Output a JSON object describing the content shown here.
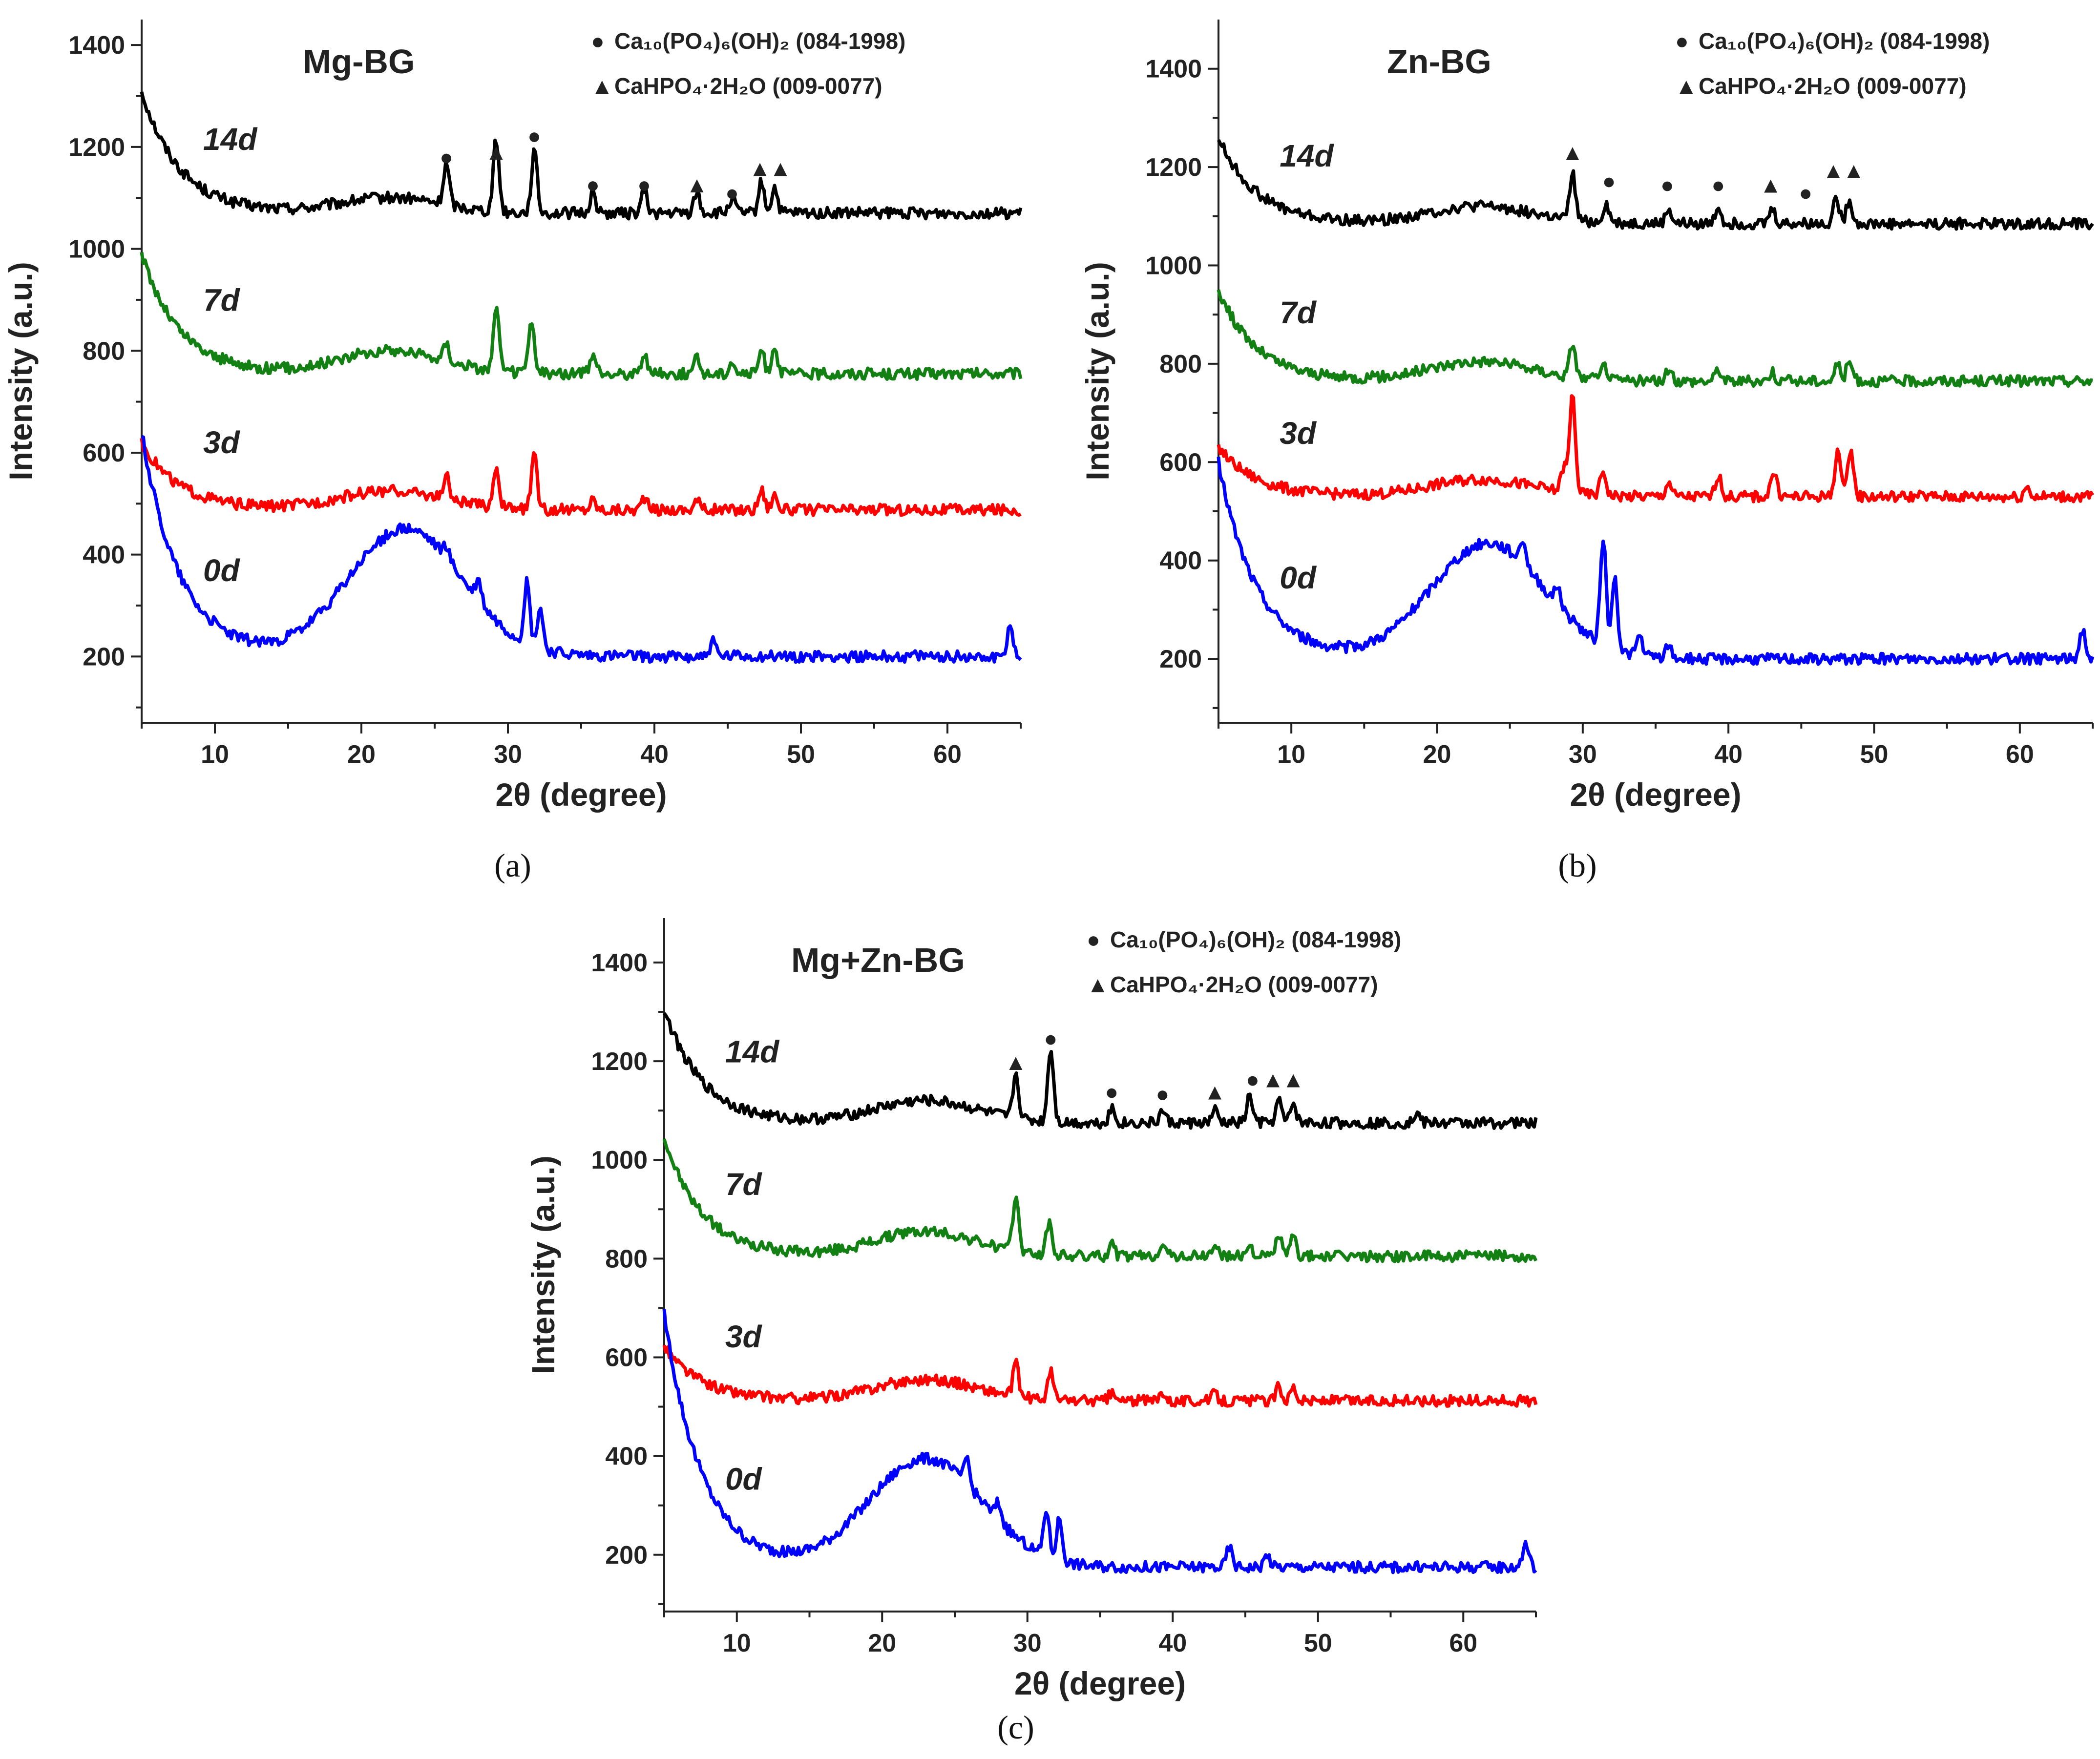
{
  "chart_data": [
    {
      "type": "line",
      "panel": "(a)",
      "title": "Mg-BG",
      "xlabel": "2θ (degree)",
      "ylabel": "Intensity (a.u.)",
      "xlim": [
        5,
        65
      ],
      "ylim": [
        70,
        1450
      ],
      "xticks": [
        10,
        20,
        30,
        40,
        50,
        60
      ],
      "yticks": [
        200,
        400,
        600,
        800,
        1000,
        1200,
        1400
      ],
      "grid": false,
      "legend": {
        "placement": "top-right",
        "entries": [
          {
            "marker": "●",
            "label": "Ca₁₀(PO₄)₆(OH)₂ (084-1998)"
          },
          {
            "marker": "▲",
            "label": "CaHPO₄·2H₂O (009-0077)"
          }
        ]
      },
      "series": [
        {
          "name": "14d",
          "color": "#000000",
          "base": 1070,
          "start": 1310,
          "halo": [
            1100,
            22,
            5
          ],
          "sharp": [
            [
              25.8,
              80
            ],
            [
              29.2,
              140
            ],
            [
              31.8,
              120
            ],
            [
              35.8,
              40
            ],
            [
              39.3,
              45
            ],
            [
              42.9,
              40
            ],
            [
              45.3,
              30
            ],
            [
              47.3,
              60
            ],
            [
              48.2,
              50
            ]
          ]
        },
        {
          "name": "7d",
          "color": "#138013",
          "base": 755,
          "start": 990,
          "halo": [
            800,
            22,
            5
          ],
          "sharp": [
            [
              25.8,
              35
            ],
            [
              29.2,
              120
            ],
            [
              31.6,
              100
            ],
            [
              35.8,
              35
            ],
            [
              39.3,
              40
            ],
            [
              42.9,
              30
            ],
            [
              45.3,
              25
            ],
            [
              47.3,
              45
            ],
            [
              48.2,
              55
            ]
          ]
        },
        {
          "name": "3d",
          "color": "#ff0000",
          "base": 488,
          "start": 620,
          "halo": [
            525,
            22,
            5
          ],
          "sharp": [
            [
              25.8,
              45
            ],
            [
              29.2,
              80
            ],
            [
              31.8,
              105
            ],
            [
              35.8,
              20
            ],
            [
              39.3,
              25
            ],
            [
              42.9,
              20
            ],
            [
              47.3,
              40
            ],
            [
              48.2,
              30
            ]
          ]
        },
        {
          "name": "0d",
          "color": "#0000ff",
          "base": 200,
          "start": 640,
          "halo": [
            450,
            23,
            5.5
          ],
          "sharp": [
            [
              25.8,
              25
            ],
            [
              28.0,
              40
            ],
            [
              31.3,
              120
            ],
            [
              32.2,
              80
            ],
            [
              44.0,
              30
            ],
            [
              64.3,
              60
            ]
          ]
        }
      ],
      "markers": [
        {
          "symbol": "●",
          "x": 25.8,
          "y": 1182
        },
        {
          "symbol": "▲",
          "x": 29.2,
          "y": 1192
        },
        {
          "symbol": "●",
          "x": 31.8,
          "y": 1224
        },
        {
          "symbol": "●",
          "x": 35.8,
          "y": 1128
        },
        {
          "symbol": "●",
          "x": 39.3,
          "y": 1128
        },
        {
          "symbol": "▲",
          "x": 42.9,
          "y": 1128
        },
        {
          "symbol": "●",
          "x": 45.3,
          "y": 1112
        },
        {
          "symbol": "▲",
          "x": 47.2,
          "y": 1160
        },
        {
          "symbol": "▲",
          "x": 48.6,
          "y": 1160
        }
      ]
    },
    {
      "type": "line",
      "panel": "(b)",
      "title": "Zn-BG",
      "xlabel": "2θ (degree)",
      "ylabel": "Intensity (a.u.)",
      "xlim": [
        5,
        65
      ],
      "ylim": [
        70,
        1500
      ],
      "xticks": [
        10,
        20,
        30,
        40,
        50,
        60
      ],
      "yticks": [
        200,
        400,
        600,
        800,
        1000,
        1200,
        1400
      ],
      "grid": false,
      "legend": {
        "placement": "top-right",
        "entries": [
          {
            "marker": "●",
            "label": "Ca₁₀(PO₄)₆(OH)₂ (084-1998)"
          },
          {
            "marker": "▲",
            "label": "CaHPO₄·2H₂O (009-0077)"
          }
        ]
      },
      "series": [
        {
          "name": "14d",
          "color": "#000000",
          "base": 1085,
          "start": 1260,
          "halo": [
            1120,
            23,
            5
          ],
          "sharp": [
            [
              29.3,
              95
            ],
            [
              31.6,
              40
            ],
            [
              35.9,
              30
            ],
            [
              39.3,
              35
            ],
            [
              43.0,
              30
            ],
            [
              47.4,
              55
            ],
            [
              48.3,
              50
            ]
          ]
        },
        {
          "name": "7d",
          "color": "#138013",
          "base": 765,
          "start": 950,
          "halo": [
            805,
            23,
            5
          ],
          "sharp": [
            [
              29.3,
              70
            ],
            [
              31.5,
              30
            ],
            [
              35.9,
              20
            ],
            [
              39.3,
              25
            ],
            [
              43.0,
              20
            ],
            [
              47.5,
              35
            ],
            [
              48.3,
              40
            ]
          ]
        },
        {
          "name": "3d",
          "color": "#ff0000",
          "base": 530,
          "start": 630,
          "halo": [
            565,
            23,
            5
          ],
          "sharp": [
            [
              28.7,
              50
            ],
            [
              29.3,
              200
            ],
            [
              31.4,
              50
            ],
            [
              35.9,
              30
            ],
            [
              39.3,
              45
            ],
            [
              43.1,
              50
            ],
            [
              47.5,
              95
            ],
            [
              48.4,
              90
            ],
            [
              60.5,
              20
            ]
          ]
        },
        {
          "name": "0d",
          "color": "#0000ff",
          "base": 200,
          "start": 600,
          "halo": [
            435,
            23.5,
            5.5
          ],
          "sharp": [
            [
              25.9,
              50
            ],
            [
              28.3,
              40
            ],
            [
              31.4,
              220
            ],
            [
              32.2,
              140
            ],
            [
              33.9,
              40
            ],
            [
              35.9,
              25
            ],
            [
              64.3,
              60
            ]
          ]
        }
      ],
      "markers": [
        {
          "symbol": "▲",
          "x": 29.3,
          "y": 1232
        },
        {
          "symbol": "●",
          "x": 31.8,
          "y": 1174
        },
        {
          "symbol": "●",
          "x": 35.8,
          "y": 1166
        },
        {
          "symbol": "●",
          "x": 39.3,
          "y": 1166
        },
        {
          "symbol": "▲",
          "x": 42.9,
          "y": 1166
        },
        {
          "symbol": "●",
          "x": 45.3,
          "y": 1150
        },
        {
          "symbol": "▲",
          "x": 47.2,
          "y": 1195
        },
        {
          "symbol": "▲",
          "x": 48.6,
          "y": 1195
        }
      ]
    },
    {
      "type": "line",
      "panel": "(c)",
      "title": "Mg+Zn-BG",
      "xlabel": "2θ (degree)",
      "ylabel": "Intensity (a.u.)",
      "xlim": [
        5,
        65
      ],
      "ylim": [
        85,
        1490
      ],
      "xticks": [
        10,
        20,
        30,
        40,
        50,
        60
      ],
      "yticks": [
        200,
        400,
        600,
        800,
        1000,
        1200,
        1400
      ],
      "grid": false,
      "legend": {
        "placement": "top-right",
        "entries": [
          {
            "marker": "●",
            "label": "Ca₁₀(PO₄)₆(OH)₂ (084-1998)"
          },
          {
            "marker": "▲",
            "label": "CaHPO₄·2H₂O (009-0077)"
          }
        ]
      },
      "series": [
        {
          "name": "14d",
          "color": "#000000",
          "base": 1075,
          "start": 1305,
          "halo": [
            1120,
            23,
            5
          ],
          "sharp": [
            [
              29.2,
              90
            ],
            [
              31.6,
              150
            ],
            [
              35.8,
              30
            ],
            [
              39.3,
              25
            ],
            [
              42.9,
              25
            ],
            [
              45.3,
              55
            ],
            [
              47.3,
              45
            ],
            [
              48.3,
              40
            ],
            [
              56.8,
              20
            ]
          ]
        },
        {
          "name": "7d",
          "color": "#138013",
          "base": 805,
          "start": 1045,
          "halo": [
            855,
            23,
            5
          ],
          "sharp": [
            [
              29.2,
              115
            ],
            [
              31.5,
              65
            ],
            [
              35.8,
              25
            ],
            [
              39.3,
              30
            ],
            [
              42.9,
              25
            ],
            [
              45.3,
              25
            ],
            [
              47.3,
              45
            ],
            [
              48.3,
              40
            ]
          ]
        },
        {
          "name": "3d",
          "color": "#ff0000",
          "base": 512,
          "start": 622,
          "halo": [
            555,
            23,
            5
          ],
          "sharp": [
            [
              29.2,
              65
            ],
            [
              31.6,
              55
            ],
            [
              35.8,
              15
            ],
            [
              39.3,
              20
            ],
            [
              42.9,
              15
            ],
            [
              47.3,
              30
            ],
            [
              48.3,
              30
            ]
          ]
        },
        {
          "name": "0d",
          "color": "#0000ff",
          "base": 175,
          "start": 690,
          "halo": [
            395,
            23,
            5.5
          ],
          "sharp": [
            [
              25.8,
              50
            ],
            [
              28.0,
              35
            ],
            [
              31.3,
              95
            ],
            [
              32.2,
              85
            ],
            [
              43.9,
              40
            ],
            [
              46.5,
              25
            ],
            [
              64.3,
              50
            ]
          ]
        }
      ],
      "markers": [
        {
          "symbol": "▲",
          "x": 29.2,
          "y": 1200
        },
        {
          "symbol": "●",
          "x": 31.6,
          "y": 1248
        },
        {
          "symbol": "●",
          "x": 35.8,
          "y": 1140
        },
        {
          "symbol": "●",
          "x": 39.3,
          "y": 1136
        },
        {
          "symbol": "▲",
          "x": 42.9,
          "y": 1140
        },
        {
          "symbol": "●",
          "x": 45.5,
          "y": 1165
        },
        {
          "symbol": "▲",
          "x": 46.9,
          "y": 1165
        },
        {
          "symbol": "▲",
          "x": 48.3,
          "y": 1165
        }
      ]
    }
  ]
}
